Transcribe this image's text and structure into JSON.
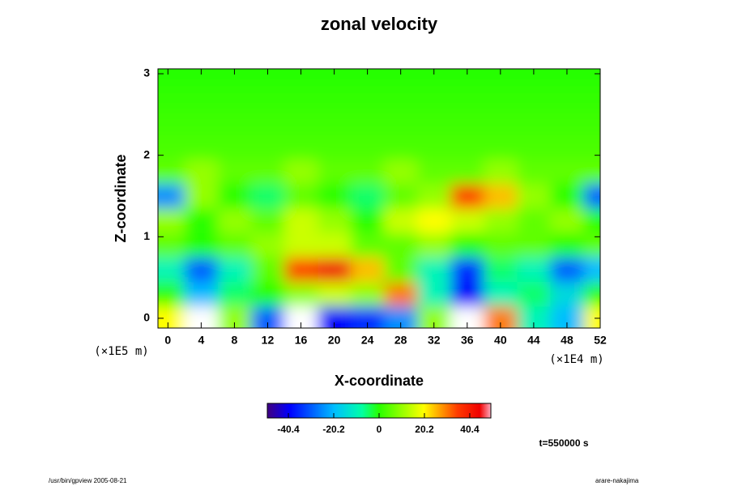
{
  "chart_data": {
    "type": "heatmap",
    "title": "zonal velocity",
    "x_label": "X-coordinate",
    "y_label": "Z-coordinate",
    "x_unit": "(×1E4 m)",
    "y_unit": "(×1E5 m)",
    "time_label": "t=550000 s",
    "footer_left": "/usr/bin/gpview 2005-08-21",
    "footer_right": "arare-nakajima",
    "x": [
      0,
      4,
      8,
      12,
      16,
      20,
      24,
      28,
      32,
      36,
      40,
      44,
      48,
      52
    ],
    "z": [
      0,
      0.3,
      0.6,
      0.9,
      1.2,
      1.5,
      1.8,
      2.1,
      2.4,
      2.7,
      3.0
    ],
    "values": [
      [
        20,
        55,
        10,
        -30,
        50,
        -40,
        -35,
        -25,
        10,
        55,
        30,
        -10,
        -20,
        20
      ],
      [
        0,
        -20,
        -5,
        0,
        10,
        15,
        10,
        30,
        -10,
        -40,
        -10,
        -5,
        -15,
        0
      ],
      [
        -10,
        -30,
        -10,
        5,
        35,
        45,
        25,
        5,
        -10,
        -35,
        -5,
        -10,
        -30,
        -20
      ],
      [
        5,
        0,
        5,
        10,
        15,
        15,
        5,
        5,
        10,
        0,
        5,
        5,
        0,
        5
      ],
      [
        10,
        0,
        10,
        5,
        15,
        10,
        0,
        15,
        20,
        15,
        10,
        5,
        10,
        0
      ],
      [
        -25,
        10,
        0,
        -5,
        5,
        0,
        -5,
        5,
        10,
        35,
        25,
        10,
        0,
        -30
      ],
      [
        5,
        10,
        5,
        5,
        10,
        5,
        5,
        10,
        5,
        5,
        10,
        5,
        5,
        5
      ],
      [
        3,
        3,
        3,
        3,
        3,
        3,
        3,
        3,
        3,
        3,
        3,
        3,
        3,
        3
      ],
      [
        2,
        2,
        2,
        2,
        2,
        2,
        2,
        2,
        2,
        2,
        2,
        2,
        2,
        2
      ],
      [
        1,
        1,
        1,
        1,
        1,
        1,
        1,
        1,
        1,
        1,
        1,
        1,
        1,
        1
      ],
      [
        0,
        0,
        0,
        0,
        0,
        0,
        0,
        0,
        0,
        0,
        0,
        0,
        0,
        0
      ]
    ],
    "xlim": [
      -1.2,
      52
    ],
    "ylim": [
      -0.12,
      3.06
    ],
    "xticks": [
      0,
      4,
      8,
      12,
      16,
      20,
      24,
      28,
      32,
      36,
      40,
      44,
      48,
      52
    ],
    "yticks": [
      0,
      1,
      2,
      3
    ],
    "clim": [
      -49.8,
      49.8
    ],
    "cticks": [
      -40.4,
      -20.2,
      0,
      20.2,
      40.4
    ]
  }
}
